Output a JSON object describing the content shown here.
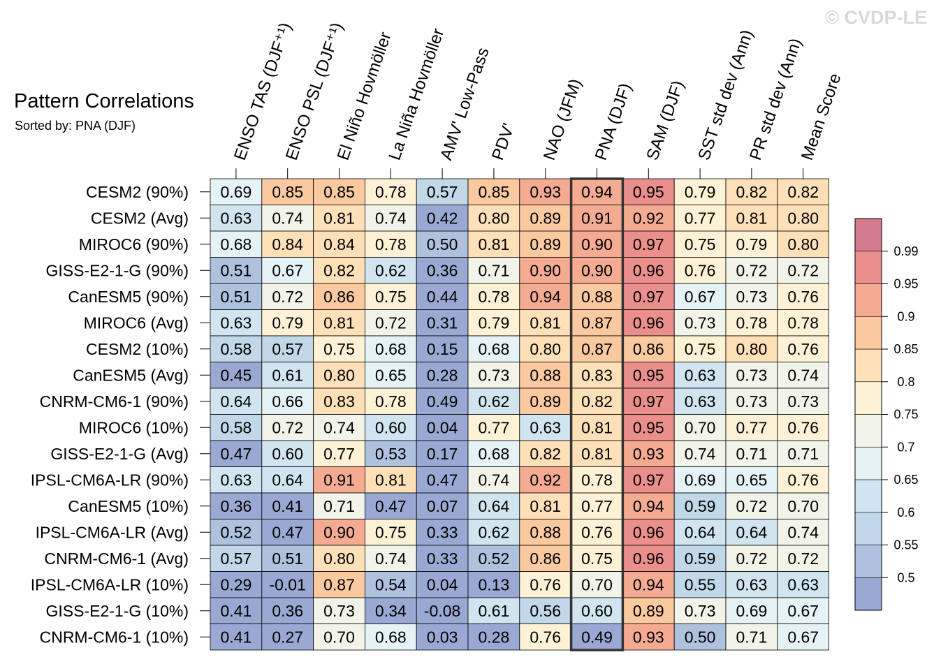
{
  "header": {
    "title": "Pattern Correlations",
    "subtitle": "Sorted by: PNA (DJF)",
    "watermark": "© CVDP-LE"
  },
  "chart_data": {
    "type": "heatmap",
    "columns": [
      "ENSO TAS (DJF⁺¹)",
      "ENSO PSL (DJF⁺¹)",
      "El Niño Hovmöller",
      "La Niña Hovmöller",
      "AMV' Low-Pass",
      "PDV'",
      "NAO (JFM)",
      "PNA (DJF)",
      "SAM (DJF)",
      "SST std dev (Ann)",
      "PR std dev (Ann)",
      "Mean Score"
    ],
    "rows": [
      "CESM2 (90%)",
      "CESM2 (Avg)",
      "MIROC6 (90%)",
      "GISS-E2-1-G (90%)",
      "CanESM5 (90%)",
      "MIROC6 (Avg)",
      "CESM2 (10%)",
      "CanESM5 (Avg)",
      "CNRM-CM6-1 (90%)",
      "MIROC6 (10%)",
      "GISS-E2-1-G (Avg)",
      "IPSL-CM6A-LR (90%)",
      "CanESM5 (10%)",
      "IPSL-CM6A-LR (Avg)",
      "CNRM-CM6-1 (Avg)",
      "IPSL-CM6A-LR (10%)",
      "GISS-E2-1-G (10%)",
      "CNRM-CM6-1 (10%)"
    ],
    "values": [
      [
        "0.69",
        "0.85",
        "0.85",
        "0.78",
        "0.57",
        "0.85",
        "0.93",
        "0.94",
        "0.95",
        "0.79",
        "0.82",
        "0.82"
      ],
      [
        "0.63",
        "0.74",
        "0.81",
        "0.74",
        "0.42",
        "0.80",
        "0.89",
        "0.91",
        "0.92",
        "0.77",
        "0.81",
        "0.80"
      ],
      [
        "0.68",
        "0.84",
        "0.84",
        "0.78",
        "0.50",
        "0.81",
        "0.89",
        "0.90",
        "0.97",
        "0.75",
        "0.79",
        "0.80"
      ],
      [
        "0.51",
        "0.67",
        "0.82",
        "0.62",
        "0.36",
        "0.71",
        "0.90",
        "0.90",
        "0.96",
        "0.76",
        "0.72",
        "0.72"
      ],
      [
        "0.51",
        "0.72",
        "0.86",
        "0.75",
        "0.44",
        "0.78",
        "0.94",
        "0.88",
        "0.97",
        "0.67",
        "0.73",
        "0.76"
      ],
      [
        "0.63",
        "0.79",
        "0.81",
        "0.72",
        "0.31",
        "0.79",
        "0.81",
        "0.87",
        "0.96",
        "0.73",
        "0.78",
        "0.78"
      ],
      [
        "0.58",
        "0.57",
        "0.75",
        "0.68",
        "0.15",
        "0.68",
        "0.80",
        "0.87",
        "0.86",
        "0.75",
        "0.80",
        "0.76"
      ],
      [
        "0.45",
        "0.61",
        "0.80",
        "0.65",
        "0.28",
        "0.73",
        "0.88",
        "0.83",
        "0.95",
        "0.63",
        "0.73",
        "0.74"
      ],
      [
        "0.64",
        "0.66",
        "0.83",
        "0.78",
        "0.49",
        "0.62",
        "0.89",
        "0.82",
        "0.97",
        "0.63",
        "0.73",
        "0.73"
      ],
      [
        "0.58",
        "0.72",
        "0.74",
        "0.60",
        "0.04",
        "0.77",
        "0.63",
        "0.81",
        "0.95",
        "0.70",
        "0.77",
        "0.76"
      ],
      [
        "0.47",
        "0.60",
        "0.77",
        "0.53",
        "0.17",
        "0.68",
        "0.82",
        "0.81",
        "0.93",
        "0.74",
        "0.71",
        "0.71"
      ],
      [
        "0.63",
        "0.64",
        "0.91",
        "0.81",
        "0.47",
        "0.74",
        "0.92",
        "0.78",
        "0.97",
        "0.69",
        "0.65",
        "0.76"
      ],
      [
        "0.36",
        "0.41",
        "0.71",
        "0.47",
        "0.07",
        "0.64",
        "0.81",
        "0.77",
        "0.94",
        "0.59",
        "0.72",
        "0.70"
      ],
      [
        "0.52",
        "0.47",
        "0.90",
        "0.75",
        "0.33",
        "0.62",
        "0.88",
        "0.76",
        "0.96",
        "0.64",
        "0.64",
        "0.74"
      ],
      [
        "0.57",
        "0.51",
        "0.80",
        "0.74",
        "0.33",
        "0.52",
        "0.86",
        "0.75",
        "0.96",
        "0.59",
        "0.72",
        "0.72"
      ],
      [
        "0.29",
        "-0.01",
        "0.87",
        "0.54",
        "0.04",
        "0.13",
        "0.76",
        "0.70",
        "0.94",
        "0.55",
        "0.63",
        "0.63"
      ],
      [
        "0.41",
        "0.36",
        "0.73",
        "0.34",
        "-0.08",
        "0.61",
        "0.56",
        "0.60",
        "0.89",
        "0.73",
        "0.69",
        "0.67"
      ],
      [
        "0.41",
        "0.27",
        "0.70",
        "0.68",
        "0.03",
        "0.28",
        "0.76",
        "0.49",
        "0.93",
        "0.50",
        "0.71",
        "0.67"
      ]
    ],
    "highlight_column": "PNA (DJF)",
    "colorbar": {
      "levels": [
        "0.99",
        "0.95",
        "0.9",
        "0.85",
        "0.8",
        "0.75",
        "0.7",
        "0.65",
        "0.6",
        "0.55",
        "0.5"
      ],
      "bin_thresholds": [
        0.5,
        0.55,
        0.6,
        0.65,
        0.7,
        0.75,
        0.8,
        0.85,
        0.9,
        0.95,
        0.99
      ],
      "colors": [
        "#9aa9d3",
        "#aec2de",
        "#c0d8e8",
        "#d0e5ef",
        "#e5f2f6",
        "#f2f4ea",
        "#fdf2d5",
        "#fde0b7",
        "#fbc99f",
        "#f5ab92",
        "#eb8f8d",
        "#d47b8f"
      ]
    }
  }
}
